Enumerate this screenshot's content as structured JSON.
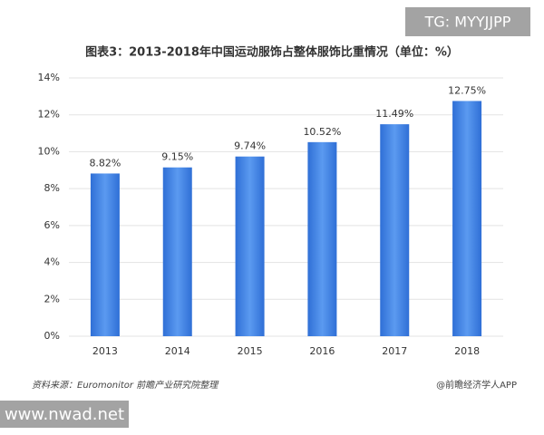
{
  "chart_data": {
    "type": "bar",
    "title": "图表3：2013-2018年中国运动服饰占整体服饰比重情况（单位：%）",
    "categories": [
      "2013",
      "2014",
      "2015",
      "2016",
      "2017",
      "2018"
    ],
    "values": [
      8.82,
      9.15,
      9.74,
      10.52,
      11.49,
      12.75
    ],
    "value_labels": [
      "8.82%",
      "9.15%",
      "9.74%",
      "10.52%",
      "11.49%",
      "12.75%"
    ],
    "color": "#3d7ee0",
    "ylim": [
      0,
      14
    ],
    "yticks": [
      {
        "value": 0,
        "label": "0%"
      },
      {
        "value": 2,
        "label": "2%"
      },
      {
        "value": 4,
        "label": "4%"
      },
      {
        "value": 6,
        "label": "6%"
      },
      {
        "value": 8,
        "label": "8%"
      },
      {
        "value": 10,
        "label": "10%"
      },
      {
        "value": 12,
        "label": "12%"
      },
      {
        "value": 14,
        "label": "14%"
      }
    ],
    "grid": true,
    "source": "资料来源：Euromonitor 前瞻产业研究院整理",
    "credit": "@前瞻经济学人APP"
  },
  "watermarks": [
    "TG: MYYJJPP",
    "www.nwad.net"
  ]
}
